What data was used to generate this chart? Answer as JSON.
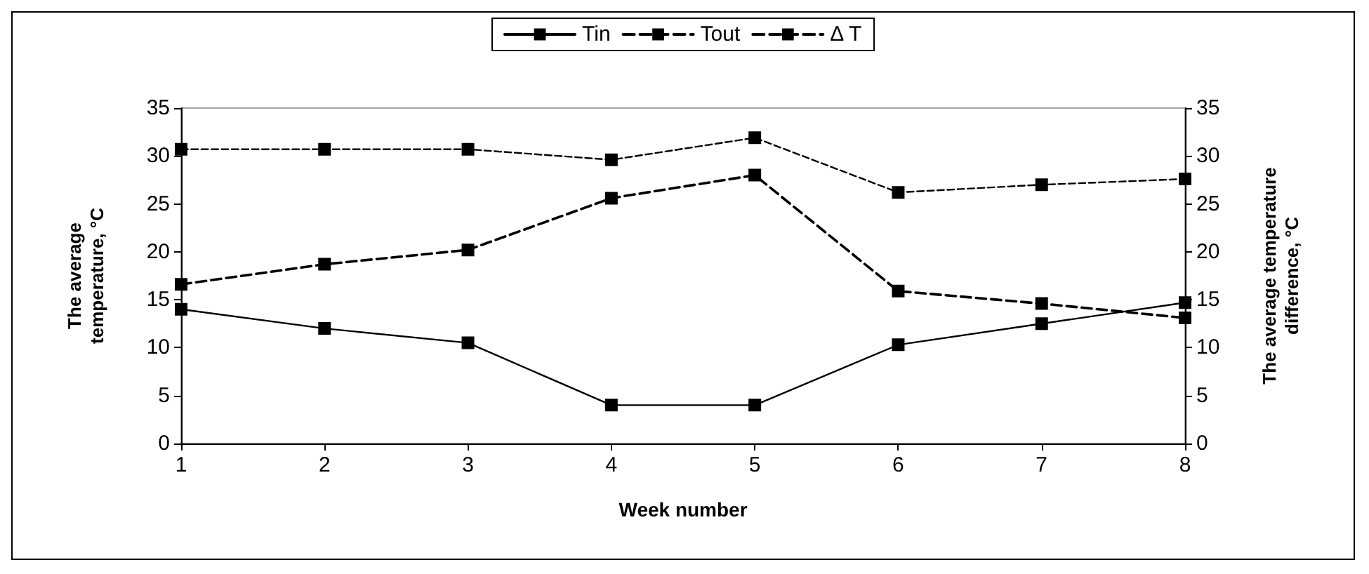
{
  "chart_data": {
    "type": "line",
    "xlabel": "Week number",
    "ylabel": "The average\ntemperature, °C",
    "y2label": "The average temperature\ndifference, °C",
    "x": [
      1,
      2,
      3,
      4,
      5,
      6,
      7,
      8
    ],
    "xlim": [
      1,
      8
    ],
    "xticks": [
      1,
      2,
      3,
      4,
      5,
      6,
      7,
      8
    ],
    "ylim": [
      0,
      35
    ],
    "yticks": [
      0,
      5,
      10,
      15,
      20,
      25,
      30,
      35
    ],
    "y2lim": [
      0,
      35
    ],
    "y2ticks": [
      0,
      5,
      10,
      15,
      20,
      25,
      30,
      35
    ],
    "grid": false,
    "legend": "top",
    "marker": "square",
    "series": [
      {
        "name": "Tin",
        "color": "#000000",
        "line_style": "solid",
        "values": [
          14.0,
          12.0,
          10.5,
          4.0,
          4.0,
          10.3,
          12.5,
          14.7
        ]
      },
      {
        "name": "Tout",
        "color": "#000000",
        "line_style": "dashed",
        "values": [
          30.7,
          30.7,
          30.7,
          29.6,
          31.9,
          26.2,
          27.0,
          27.6
        ]
      },
      {
        "name": "Δ T",
        "color": "#000000",
        "line_style": "dashed",
        "axis": "y2",
        "values": [
          16.6,
          18.7,
          20.2,
          25.6,
          28.0,
          15.9,
          14.6,
          13.1
        ]
      }
    ]
  }
}
